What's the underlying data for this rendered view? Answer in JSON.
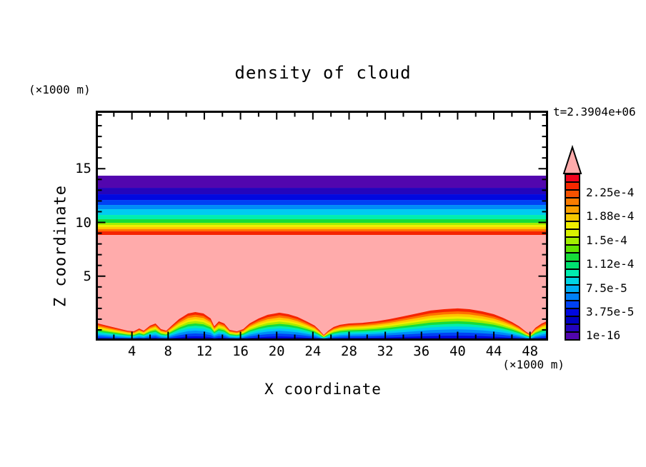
{
  "chart_data": {
    "type": "heatmap",
    "subtype": "filled-contour",
    "title": "density of cloud",
    "time_label": "t=2.3904e+06",
    "xlabel": "X coordinate",
    "ylabel": "Z coordinate",
    "x_unit_label": "(×1000 m)",
    "y_unit_label": "(×1000 m)",
    "x_range": [
      0,
      50
    ],
    "z_range": [
      -1,
      20.4
    ],
    "x_major_ticks": [
      4,
      8,
      12,
      16,
      20,
      24,
      28,
      32,
      36,
      40,
      44,
      48
    ],
    "x_minor_step": 2,
    "z_major_ticks": [
      5,
      10,
      15
    ],
    "z_minor_step": 1,
    "grid": false,
    "colorbar": {
      "labels_top_to_bottom": [
        "2.25e-4",
        "1.88e-4",
        "1.5e-4",
        "1.12e-4",
        "7.5e-5",
        "3.75e-5",
        "1e-16"
      ],
      "level_min": "1e-16",
      "level_max": "2.25e-4",
      "overflow_color": "#ffabab",
      "segment_colors_top_to_bottom": [
        "#f2041e",
        "#f52800",
        "#f55200",
        "#f87c00",
        "#faa000",
        "#f5c800",
        "#f0ee00",
        "#d8f000",
        "#a2ee00",
        "#60e400",
        "#16dc3a",
        "#00e070",
        "#00eeb0",
        "#00d4e4",
        "#00aef5",
        "#0080f8",
        "#0042f5",
        "#0008e0",
        "#0000c0",
        "#2404bc",
        "#5206ae"
      ]
    },
    "upper_cloud_layer": {
      "z_top": 14.35,
      "bands_top_to_bottom": [
        {
          "color": "#5206ae",
          "thickness_px": 17
        },
        {
          "color": "#2404bc",
          "thickness_px": 9
        },
        {
          "color": "#0008e0",
          "thickness_px": 8
        },
        {
          "color": "#0042f5",
          "thickness_px": 7
        },
        {
          "color": "#008cf8",
          "thickness_px": 6
        },
        {
          "color": "#00ccf0",
          "thickness_px": 8
        },
        {
          "color": "#00eeb0",
          "thickness_px": 6
        },
        {
          "color": "#16dc3a",
          "thickness_px": 5
        },
        {
          "color": "#a2ee00",
          "thickness_px": 3
        },
        {
          "color": "#f0ee00",
          "thickness_px": 3
        },
        {
          "color": "#ffc400",
          "thickness_px": 3
        },
        {
          "color": "#ff7000",
          "thickness_px": 3
        },
        {
          "color": "#f52400",
          "thickness_px": 5
        }
      ]
    },
    "lower_cloud_boundary": {
      "points_x_z": [
        [
          0,
          0.66
        ],
        [
          1.2,
          0.4
        ],
        [
          2.5,
          0.13
        ],
        [
          3.5,
          -0.07
        ],
        [
          4.2,
          -0.13
        ],
        [
          4.8,
          0.13
        ],
        [
          5.3,
          -0.07
        ],
        [
          6.0,
          0.4
        ],
        [
          6.6,
          0.6
        ],
        [
          7.2,
          0.07
        ],
        [
          7.8,
          -0.07
        ],
        [
          8.4,
          0.4
        ],
        [
          9.2,
          1.0
        ],
        [
          10.2,
          1.53
        ],
        [
          11.0,
          1.66
        ],
        [
          11.9,
          1.53
        ],
        [
          12.7,
          1.06
        ],
        [
          13.1,
          0.33
        ],
        [
          13.6,
          0.8
        ],
        [
          14.2,
          0.6
        ],
        [
          14.8,
          0.0
        ],
        [
          15.6,
          -0.13
        ],
        [
          16.3,
          0.07
        ],
        [
          17.0,
          0.6
        ],
        [
          18.0,
          1.06
        ],
        [
          19.0,
          1.4
        ],
        [
          20.3,
          1.6
        ],
        [
          21.3,
          1.46
        ],
        [
          22.3,
          1.2
        ],
        [
          23.3,
          0.8
        ],
        [
          24.2,
          0.4
        ],
        [
          24.7,
          0.0
        ],
        [
          25.2,
          -0.47
        ],
        [
          25.7,
          -0.07
        ],
        [
          26.3,
          0.27
        ],
        [
          27.0,
          0.47
        ],
        [
          28.0,
          0.6
        ],
        [
          29.5,
          0.66
        ],
        [
          31.0,
          0.8
        ],
        [
          32.5,
          1.0
        ],
        [
          34.0,
          1.26
        ],
        [
          35.5,
          1.53
        ],
        [
          37.0,
          1.8
        ],
        [
          38.5,
          1.93
        ],
        [
          40.0,
          2.0
        ],
        [
          41.3,
          1.93
        ],
        [
          42.7,
          1.73
        ],
        [
          44.0,
          1.46
        ],
        [
          45.0,
          1.13
        ],
        [
          46.0,
          0.73
        ],
        [
          46.8,
          0.33
        ],
        [
          47.5,
          -0.13
        ],
        [
          48.0,
          -0.4
        ],
        [
          48.6,
          0.2
        ],
        [
          49.3,
          0.6
        ],
        [
          50.0,
          0.86
        ]
      ],
      "bands_outer_to_inner": [
        {
          "color": "#f52400",
          "fraction": 1.0
        },
        {
          "color": "#ff7000",
          "fraction": 0.91
        },
        {
          "color": "#ffc400",
          "fraction": 0.83
        },
        {
          "color": "#f0ee00",
          "fraction": 0.75
        },
        {
          "color": "#a2ee00",
          "fraction": 0.68
        },
        {
          "color": "#16dc3a",
          "fraction": 0.6
        },
        {
          "color": "#00eeb0",
          "fraction": 0.52
        },
        {
          "color": "#00ccf0",
          "fraction": 0.44
        },
        {
          "color": "#008cf8",
          "fraction": 0.35
        },
        {
          "color": "#0042f5",
          "fraction": 0.25
        },
        {
          "color": "#0008e0",
          "fraction": 0.15
        },
        {
          "color": "#2404bc",
          "fraction": 0.07
        },
        {
          "color": "#5206ae",
          "fraction": 0.025
        }
      ]
    }
  }
}
